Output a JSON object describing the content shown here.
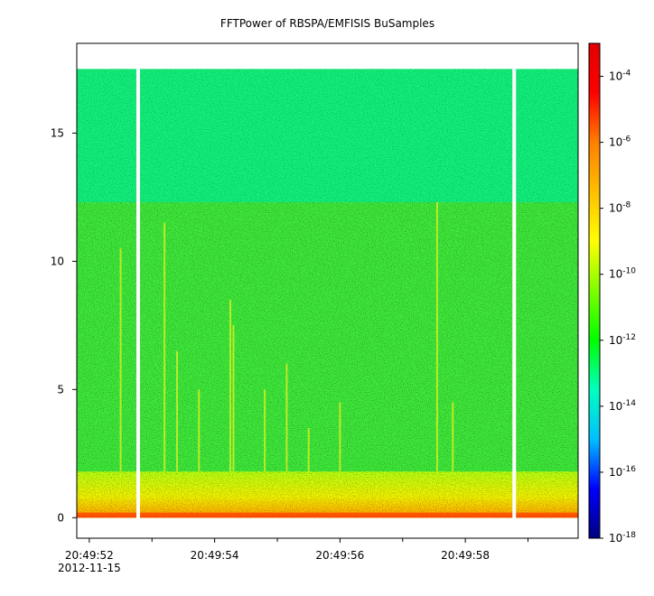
{
  "chart_data": {
    "type": "heatmap",
    "title": "FFTPower of RBSPA/EMFISIS  BuSamples",
    "xlabel": "",
    "ylabel": "",
    "x_ticks": [
      {
        "t": 0,
        "label": "20:49:52"
      },
      {
        "t": 2,
        "label": "20:49:54"
      },
      {
        "t": 4,
        "label": "20:49:56"
      },
      {
        "t": 6,
        "label": "20:49:58"
      }
    ],
    "x_minor_ticks": [
      1,
      3,
      5,
      7
    ],
    "x_date_label": "2012-11-15",
    "xlim": [
      -0.2,
      7.8
    ],
    "ylim": [
      -0.8,
      18.5
    ],
    "y_ticks": [
      0,
      5,
      10,
      15
    ],
    "data_top": 17.5,
    "cyan_band_bottom": 12.3,
    "gaps": [
      0.78,
      6.78
    ],
    "emission_lines": [
      {
        "t": 0.5,
        "top": 10.5
      },
      {
        "t": 1.2,
        "top": 11.5
      },
      {
        "t": 1.4,
        "top": 6.5
      },
      {
        "t": 1.75,
        "top": 5.0
      },
      {
        "t": 2.25,
        "top": 8.5
      },
      {
        "t": 2.3,
        "top": 7.5
      },
      {
        "t": 2.8,
        "top": 5.0
      },
      {
        "t": 3.15,
        "top": 6.0
      },
      {
        "t": 3.5,
        "top": 3.5
      },
      {
        "t": 4.0,
        "top": 4.5
      },
      {
        "t": 5.55,
        "top": 12.3
      },
      {
        "t": 5.8,
        "top": 4.5
      }
    ],
    "colorbar": {
      "scale": "log",
      "range": [
        1e-18,
        0.001
      ],
      "tick_base": "10",
      "ticks": [
        "-18",
        "-16",
        "-14",
        "-12",
        "-10",
        "-8",
        "-6",
        "-4"
      ],
      "colormap": [
        "#00007f",
        "#0000ff",
        "#00bfff",
        "#00ffbf",
        "#00ff00",
        "#7fff00",
        "#ffff00",
        "#ffbf00",
        "#ff7f00",
        "#ff0000",
        "#e00000"
      ]
    },
    "grid": false
  }
}
